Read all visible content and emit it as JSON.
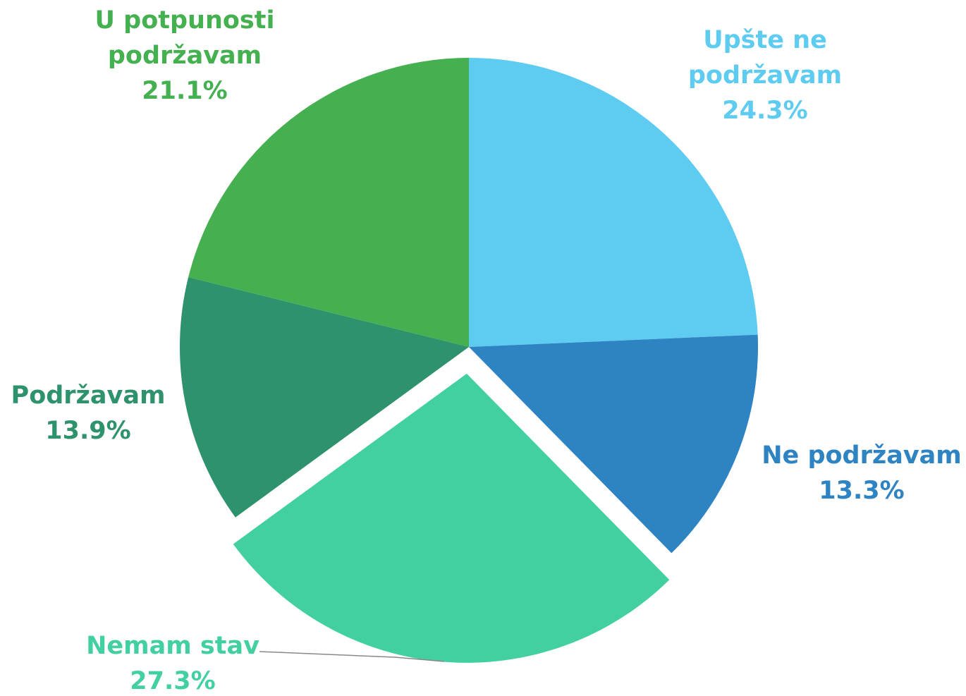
{
  "chart_data": {
    "type": "pie",
    "categories": [
      "Upšte ne podržavam",
      "Ne podržavam",
      "Nemam stav",
      "Podržavam",
      "U potpunosti podržavam"
    ],
    "values": [
      24.3,
      13.3,
      27.3,
      13.9,
      21.1
    ],
    "value_labels": [
      "24.3%",
      "13.3%",
      "27.3%",
      "13.9%",
      "21.1%"
    ],
    "colors": [
      "#5ecbf0",
      "#2e83c3",
      "#43d0a0",
      "#2e936d",
      "#45b050"
    ],
    "exploded": [
      false,
      false,
      true,
      false,
      false
    ]
  }
}
